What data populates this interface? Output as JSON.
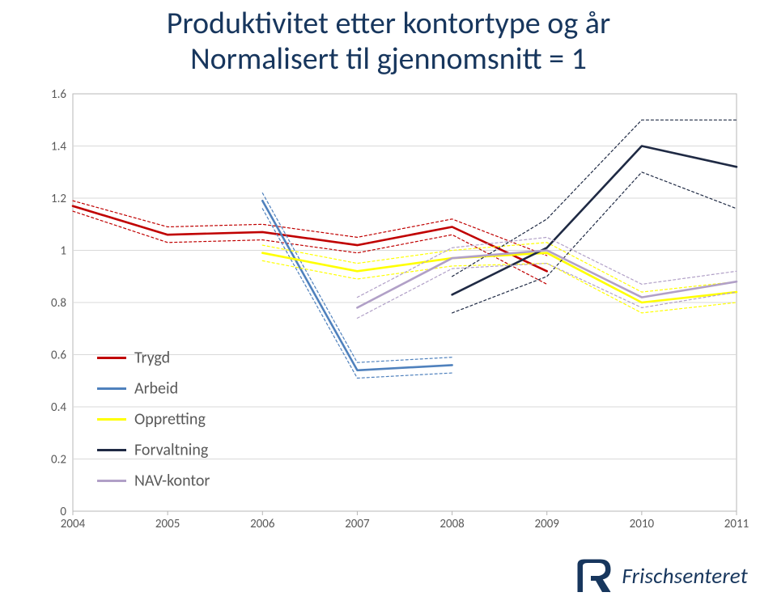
{
  "title_line1": "Produktivitet etter kontortype og år",
  "title_line2": "Normalisert til gjennomsnitt = 1",
  "title_color": "#17365d",
  "title_fontsize": 38,
  "footer_text": "Frischsenteret",
  "footer_color": "#17365d",
  "logo_colors": {
    "fill": "#17365d",
    "accent": "#ffffff"
  },
  "chart": {
    "type": "line",
    "x_categories": [
      "2004",
      "2005",
      "2006",
      "2007",
      "2008",
      "2009",
      "2010",
      "2011"
    ],
    "ylim": [
      0,
      1.6
    ],
    "ytick_step": 0.2,
    "y_ticks": [
      0,
      0.2,
      0.4,
      0.6,
      0.8,
      1,
      1.2,
      1.4,
      1.6
    ],
    "y_labels": [
      "0",
      "0.2",
      "0.4",
      "0.6",
      "0.8",
      "1",
      "1.2",
      "1.4",
      "1.6"
    ],
    "background_color": "#ffffff",
    "grid_color": "#d9d9d9",
    "axis_label_color": "#595959",
    "axis_fontsize": 15,
    "plot_border_color": "#b7b7b7",
    "legend": {
      "position": "lower-left-inside",
      "fontsize": 20,
      "items": [
        {
          "label": "Trygd",
          "color": "#c00000"
        },
        {
          "label": "Arbeid",
          "color": "#4f81bd"
        },
        {
          "label": "Oppretting",
          "color": "#ffff00"
        },
        {
          "label": "Forvaltning",
          "color": "#1f2a44"
        },
        {
          "label": "NAV-kontor",
          "color": "#b1a0c7"
        }
      ]
    },
    "series": [
      {
        "name": "Trygd",
        "color": "#c00000",
        "width": 2.6,
        "dash": "none",
        "x": [
          2004,
          2005,
          2006,
          2007,
          2008,
          2009
        ],
        "y": [
          1.17,
          1.06,
          1.07,
          1.02,
          1.09,
          0.92
        ]
      },
      {
        "name": "Trygd_upper",
        "color": "#c00000",
        "width": 1.2,
        "dash": "3,3",
        "x": [
          2004,
          2005,
          2006,
          2007,
          2008,
          2009
        ],
        "y": [
          1.19,
          1.09,
          1.1,
          1.05,
          1.12,
          0.98
        ]
      },
      {
        "name": "Trygd_lower",
        "color": "#c00000",
        "width": 1.2,
        "dash": "3,3",
        "x": [
          2004,
          2005,
          2006,
          2007,
          2008,
          2009
        ],
        "y": [
          1.15,
          1.03,
          1.04,
          0.99,
          1.06,
          0.87
        ]
      },
      {
        "name": "Arbeid",
        "color": "#4f81bd",
        "width": 2.6,
        "dash": "none",
        "x": [
          2006,
          2007,
          2008
        ],
        "y": [
          1.19,
          0.54,
          0.56
        ]
      },
      {
        "name": "Arbeid_upper",
        "color": "#4f81bd",
        "width": 1.2,
        "dash": "3,3",
        "x": [
          2006,
          2007,
          2008
        ],
        "y": [
          1.22,
          0.57,
          0.59
        ]
      },
      {
        "name": "Arbeid_lower",
        "color": "#4f81bd",
        "width": 1.2,
        "dash": "3,3",
        "x": [
          2006,
          2007,
          2008
        ],
        "y": [
          1.16,
          0.51,
          0.53
        ]
      },
      {
        "name": "Oppretting",
        "color": "#ffff00",
        "width": 2.6,
        "dash": "none",
        "x": [
          2006,
          2007,
          2008,
          2009,
          2010,
          2011
        ],
        "y": [
          0.99,
          0.92,
          0.97,
          0.99,
          0.8,
          0.84
        ]
      },
      {
        "name": "Oppretting_upper",
        "color": "#ffff00",
        "width": 1.2,
        "dash": "3,3",
        "x": [
          2006,
          2007,
          2008,
          2009,
          2010,
          2011
        ],
        "y": [
          1.02,
          0.95,
          1.0,
          1.03,
          0.84,
          0.88
        ]
      },
      {
        "name": "Oppretting_lower",
        "color": "#ffff00",
        "width": 1.2,
        "dash": "3,3",
        "x": [
          2006,
          2007,
          2008,
          2009,
          2010,
          2011
        ],
        "y": [
          0.96,
          0.89,
          0.94,
          0.95,
          0.76,
          0.8
        ]
      },
      {
        "name": "Forvaltning",
        "color": "#1f2a44",
        "width": 2.6,
        "dash": "none",
        "x": [
          2008,
          2009,
          2010,
          2011
        ],
        "y": [
          0.83,
          1.01,
          1.4,
          1.32
        ]
      },
      {
        "name": "Forvaltning_upper",
        "color": "#1f2a44",
        "width": 1.2,
        "dash": "3,3",
        "x": [
          2008,
          2009,
          2010,
          2011
        ],
        "y": [
          0.9,
          1.12,
          1.5,
          1.5
        ]
      },
      {
        "name": "Forvaltning_lower",
        "color": "#1f2a44",
        "width": 1.2,
        "dash": "3,3",
        "x": [
          2008,
          2009,
          2010,
          2011
        ],
        "y": [
          0.76,
          0.9,
          1.3,
          1.16
        ]
      },
      {
        "name": "NAV-kontor",
        "color": "#b1a0c7",
        "width": 2.6,
        "dash": "none",
        "x": [
          2007,
          2008,
          2009,
          2010,
          2011
        ],
        "y": [
          0.78,
          0.97,
          1.0,
          0.82,
          0.88
        ]
      },
      {
        "name": "NAV_upper",
        "color": "#b1a0c7",
        "width": 1.2,
        "dash": "3,3",
        "x": [
          2007,
          2008,
          2009,
          2010,
          2011
        ],
        "y": [
          0.82,
          1.01,
          1.05,
          0.87,
          0.92
        ]
      },
      {
        "name": "NAV_lower",
        "color": "#b1a0c7",
        "width": 1.2,
        "dash": "3,3",
        "x": [
          2007,
          2008,
          2009,
          2010,
          2011
        ],
        "y": [
          0.74,
          0.93,
          0.95,
          0.78,
          0.84
        ]
      }
    ]
  }
}
